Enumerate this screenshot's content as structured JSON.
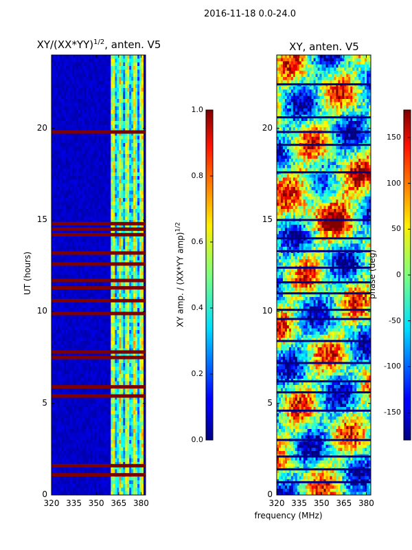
{
  "page": {
    "suptitle": "2016-11-18 0.0-24.0"
  },
  "panel_left": {
    "title": "XY/(XX*YY)",
    "title_sup": "1/2",
    "title_suffix": ", anten. V5",
    "ylabel": "UT (hours)",
    "colorbar": {
      "label": "XY amp. / (XX*YY amp)",
      "label_sup": "1/2",
      "ticks": [
        "0.0",
        "0.2",
        "0.4",
        "0.6",
        "0.8",
        "1.0"
      ]
    }
  },
  "panel_right": {
    "title": "XY, anten. V5",
    "xlabel": "frequency (MHz)",
    "colorbar": {
      "label": "phase (deg)",
      "ticks": [
        "-150",
        "-100",
        "-50",
        "0",
        "50",
        "100",
        "150"
      ]
    }
  },
  "chart_data": [
    {
      "type": "heatmap",
      "title": "XY/(XX*YY)^1/2, anten. V5",
      "xlabel": "",
      "ylabel": "UT (hours)",
      "xlim": [
        320,
        383
      ],
      "ylim": [
        0,
        24
      ],
      "xticks": [
        320,
        335,
        350,
        365,
        380
      ],
      "yticks": [
        0,
        5,
        10,
        15,
        20
      ],
      "colormap": "jet",
      "clim": [
        0.0,
        1.0
      ],
      "features": {
        "background_value": 0.05,
        "active_band_mhz": [
          360,
          382
        ],
        "saturated_rows_hours": [
          1.1,
          1.6,
          5.4,
          5.9,
          7.5,
          7.8,
          9.9,
          10.6,
          11.3,
          11.7,
          12.6,
          13.2,
          14.2,
          14.5,
          14.8,
          19.8
        ]
      }
    },
    {
      "type": "heatmap",
      "title": "XY, anten. V5",
      "xlabel": "frequency (MHz)",
      "ylabel": "",
      "xlim": [
        320,
        383
      ],
      "ylim": [
        0,
        24
      ],
      "xticks": [
        320,
        335,
        350,
        365,
        380
      ],
      "yticks": [
        0,
        5,
        10,
        15,
        20
      ],
      "colormap": "jet",
      "clim": [
        -180,
        180
      ],
      "features": {
        "dark_rows_hours": [
          0.7,
          1.4,
          2.1,
          3.0,
          4.6,
          5.6,
          6.2,
          7.2,
          8.4,
          9.6,
          10.1,
          11.0,
          11.6,
          12.4,
          13.3,
          14.0,
          15.0,
          17.6,
          19.1,
          19.8,
          20.6,
          22.4
        ]
      }
    }
  ],
  "colors": {
    "axis": "#000000",
    "background": "#ffffff"
  }
}
